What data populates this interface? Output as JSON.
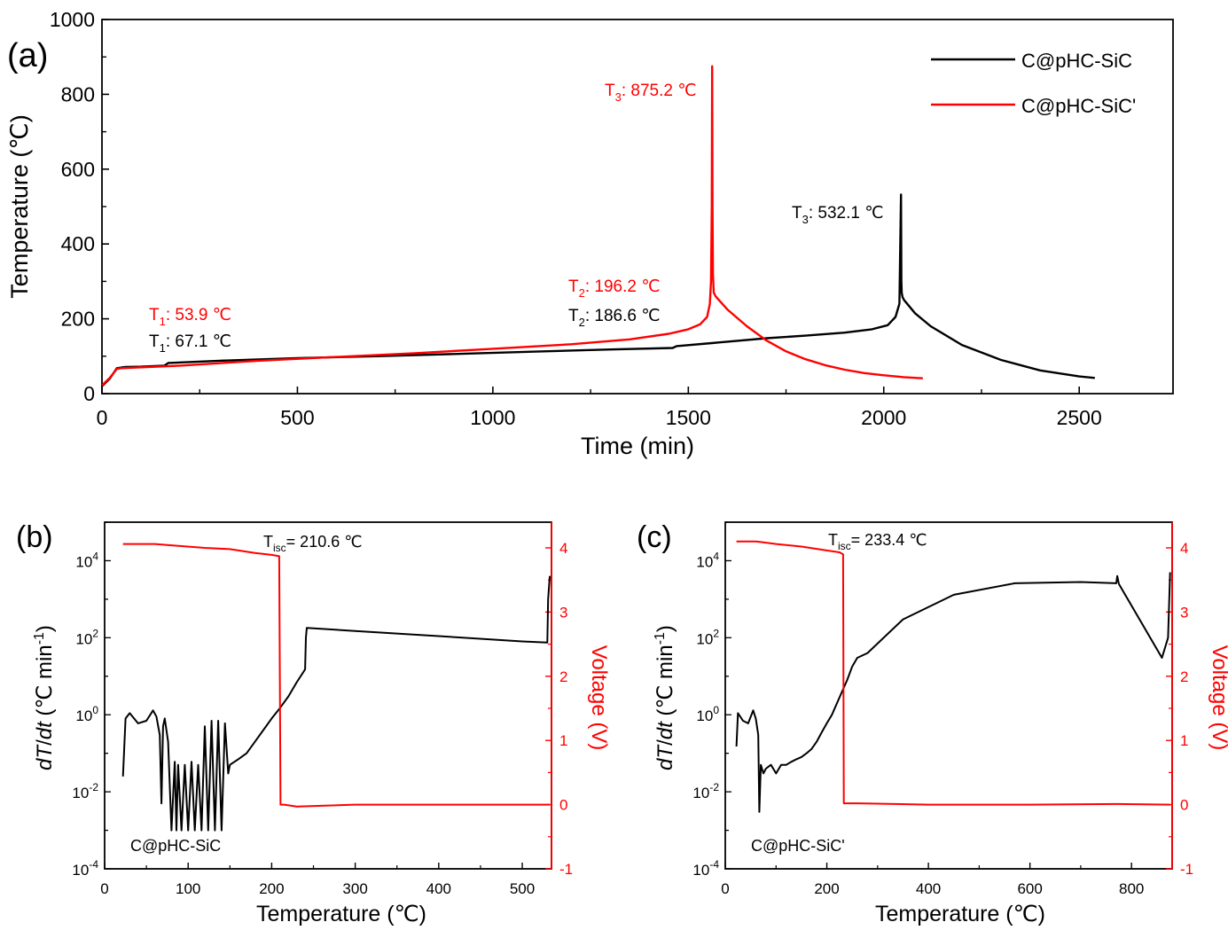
{
  "chart_data": [
    {
      "panel_label": "(a)",
      "type": "line",
      "xlabel": "Time (min)",
      "ylabel": "Temperature (℃)",
      "xlim": [
        0,
        2740
      ],
      "ylim": [
        0,
        1000
      ],
      "xticks": [
        0,
        500,
        1000,
        1500,
        2000,
        2500
      ],
      "yticks": [
        0,
        200,
        400,
        600,
        800,
        1000
      ],
      "legend_position": "top-right",
      "series": [
        {
          "name": "C@pHC-SiC",
          "color": "#000000",
          "x": [
            0,
            20,
            38,
            50,
            60,
            100,
            160,
            170,
            300,
            500,
            700,
            900,
            1100,
            1300,
            1460,
            1470,
            1560,
            1580,
            1700,
            1800,
            1900,
            1970,
            2010,
            2030,
            2040,
            2044,
            2045,
            2046,
            2048,
            2052,
            2060,
            2080,
            2120,
            2200,
            2300,
            2400,
            2500,
            2540
          ],
          "y": [
            20,
            40,
            68,
            70,
            71,
            72,
            75,
            82,
            88,
            95,
            100,
            106,
            112,
            118,
            122,
            127,
            135,
            137,
            148,
            155,
            163,
            172,
            183,
            205,
            240,
            532.1,
            300,
            270,
            258,
            250,
            240,
            215,
            180,
            130,
            90,
            62,
            46,
            42
          ]
        },
        {
          "name": "C@pHC-SiC'",
          "color": "#ff0000",
          "x": [
            0,
            20,
            38,
            50,
            200,
            400,
            600,
            800,
            1000,
            1200,
            1350,
            1450,
            1500,
            1530,
            1548,
            1555,
            1558,
            1560,
            1561,
            1562,
            1563,
            1565,
            1570,
            1580,
            1600,
            1650,
            1700,
            1750,
            1800,
            1850,
            1900,
            1950,
            2000,
            2050,
            2100
          ],
          "y": [
            22,
            42,
            66,
            68,
            75,
            88,
            98,
            108,
            120,
            132,
            145,
            160,
            172,
            185,
            205,
            240,
            300,
            500,
            875.2,
            500,
            320,
            270,
            260,
            248,
            225,
            180,
            142,
            113,
            92,
            76,
            64,
            55,
            49,
            44,
            41
          ]
        }
      ],
      "annotations": [
        {
          "sub": "3",
          "value": ": 875.2 ℃",
          "color": "#ff0000"
        },
        {
          "sub": "3",
          "value": ": 532.1 ℃",
          "color": "#000000"
        },
        {
          "sub": "2",
          "value": ": 196.2 ℃",
          "color": "#ff0000"
        },
        {
          "sub": "2",
          "value": ": 186.6 ℃",
          "color": "#000000"
        },
        {
          "sub": "1",
          "value": ": 53.9 ℃",
          "color": "#ff0000"
        },
        {
          "sub": "1",
          "value": ": 67.1 ℃",
          "color": "#000000"
        }
      ]
    },
    {
      "panel_label": "(b)",
      "type": "line",
      "xlabel": "Temperature (℃)",
      "ylabel_left": "dT/dt (℃ min⁻¹)",
      "ylabel_right": "Voltage (V)",
      "xlim": [
        0,
        535
      ],
      "ylim_left_log10": [
        -4,
        5
      ],
      "ylim_right": [
        -1,
        4.4
      ],
      "xticks": [
        0,
        100,
        200,
        300,
        400,
        500
      ],
      "yticks_left_exponents": [
        -4,
        -2,
        0,
        2,
        4
      ],
      "yticks_right": [
        -1,
        0,
        1,
        2,
        3,
        4
      ],
      "sample_label": "C@pHC-SiC",
      "annotation": {
        "sub": "isc",
        "value": "= 210.6 ℃"
      },
      "series": [
        {
          "name": "dT/dt",
          "axis": "left",
          "color": "#000000",
          "x": [
            22,
            25,
            30,
            40,
            50,
            58,
            62,
            66,
            68,
            70,
            72,
            76,
            80,
            84,
            86,
            88,
            92,
            96,
            100,
            104,
            108,
            112,
            116,
            120,
            124,
            128,
            132,
            136,
            140,
            144,
            148,
            150,
            160,
            170,
            180,
            190,
            200,
            210,
            220,
            230,
            240,
            241,
            242,
            300,
            400,
            500,
            530,
            531,
            533
          ],
          "y": [
            0.025,
            0.8,
            1.1,
            0.6,
            0.7,
            1.3,
            0.9,
            0.3,
            0.005,
            0.5,
            0.8,
            0.2,
            0.001,
            0.06,
            0.001,
            0.05,
            0.001,
            0.05,
            0.001,
            0.06,
            0.001,
            0.05,
            0.001,
            0.5,
            0.001,
            0.7,
            0.001,
            0.7,
            0.001,
            0.6,
            0.03,
            0.05,
            0.07,
            0.1,
            0.2,
            0.4,
            0.8,
            1.5,
            3,
            7,
            15,
            100,
            180,
            150,
            110,
            80,
            75,
            1000,
            4000
          ]
        },
        {
          "name": "Voltage",
          "axis": "right",
          "color": "#ff0000",
          "x": [
            22,
            60,
            80,
            120,
            150,
            180,
            200,
            209,
            210.6,
            212,
            215,
            230,
            300,
            400,
            500,
            533
          ],
          "y": [
            4.06,
            4.06,
            4.04,
            4.0,
            3.98,
            3.92,
            3.89,
            3.87,
            0.0,
            0.0,
            0.0,
            -0.03,
            0.0,
            0.0,
            0.0,
            0.0
          ]
        }
      ]
    },
    {
      "panel_label": "(c)",
      "type": "line",
      "xlabel": "Temperature (℃)",
      "ylabel_left": "dT/dt (℃ min⁻¹)",
      "ylabel_right": "Voltage (V)",
      "xlim": [
        0,
        880
      ],
      "ylim_left_log10": [
        -4,
        5
      ],
      "ylim_right": [
        -1,
        4.4
      ],
      "xticks": [
        0,
        200,
        400,
        600,
        800
      ],
      "yticks_left_exponents": [
        -4,
        -2,
        0,
        2,
        4
      ],
      "yticks_right": [
        -1,
        0,
        1,
        2,
        3,
        4
      ],
      "sample_label": "C@pHC-SiC'",
      "annotation": {
        "sub": "isc",
        "value": "= 233.4 ℃"
      },
      "series": [
        {
          "name": "dT/dt",
          "axis": "left",
          "color": "#000000",
          "x": [
            22,
            25,
            35,
            45,
            55,
            60,
            65,
            67,
            70,
            75,
            80,
            90,
            100,
            110,
            120,
            130,
            140,
            150,
            160,
            170,
            180,
            190,
            200,
            210,
            220,
            230,
            240,
            250,
            260,
            280,
            350,
            450,
            570,
            700,
            770,
            772,
            775,
            860,
            872,
            876
          ],
          "y": [
            0.15,
            1.1,
            0.7,
            0.6,
            1.3,
            0.8,
            0.3,
            0.003,
            0.05,
            0.03,
            0.04,
            0.05,
            0.03,
            0.05,
            0.05,
            0.06,
            0.07,
            0.08,
            0.1,
            0.13,
            0.2,
            0.35,
            0.6,
            1.0,
            2,
            4,
            8,
            18,
            30,
            40,
            300,
            1300,
            2600,
            2800,
            2600,
            4000,
            2500,
            30,
            100,
            5000
          ]
        },
        {
          "name": "Voltage",
          "axis": "right",
          "color": "#ff0000",
          "x": [
            22,
            60,
            70,
            100,
            150,
            200,
            225,
            232,
            233.4,
            236,
            260,
            400,
            600,
            770,
            876
          ],
          "y": [
            4.1,
            4.1,
            4.09,
            4.06,
            4.02,
            3.96,
            3.93,
            3.9,
            0.02,
            0.02,
            0.02,
            0.0,
            0.0,
            0.01,
            0.0
          ]
        }
      ]
    }
  ]
}
